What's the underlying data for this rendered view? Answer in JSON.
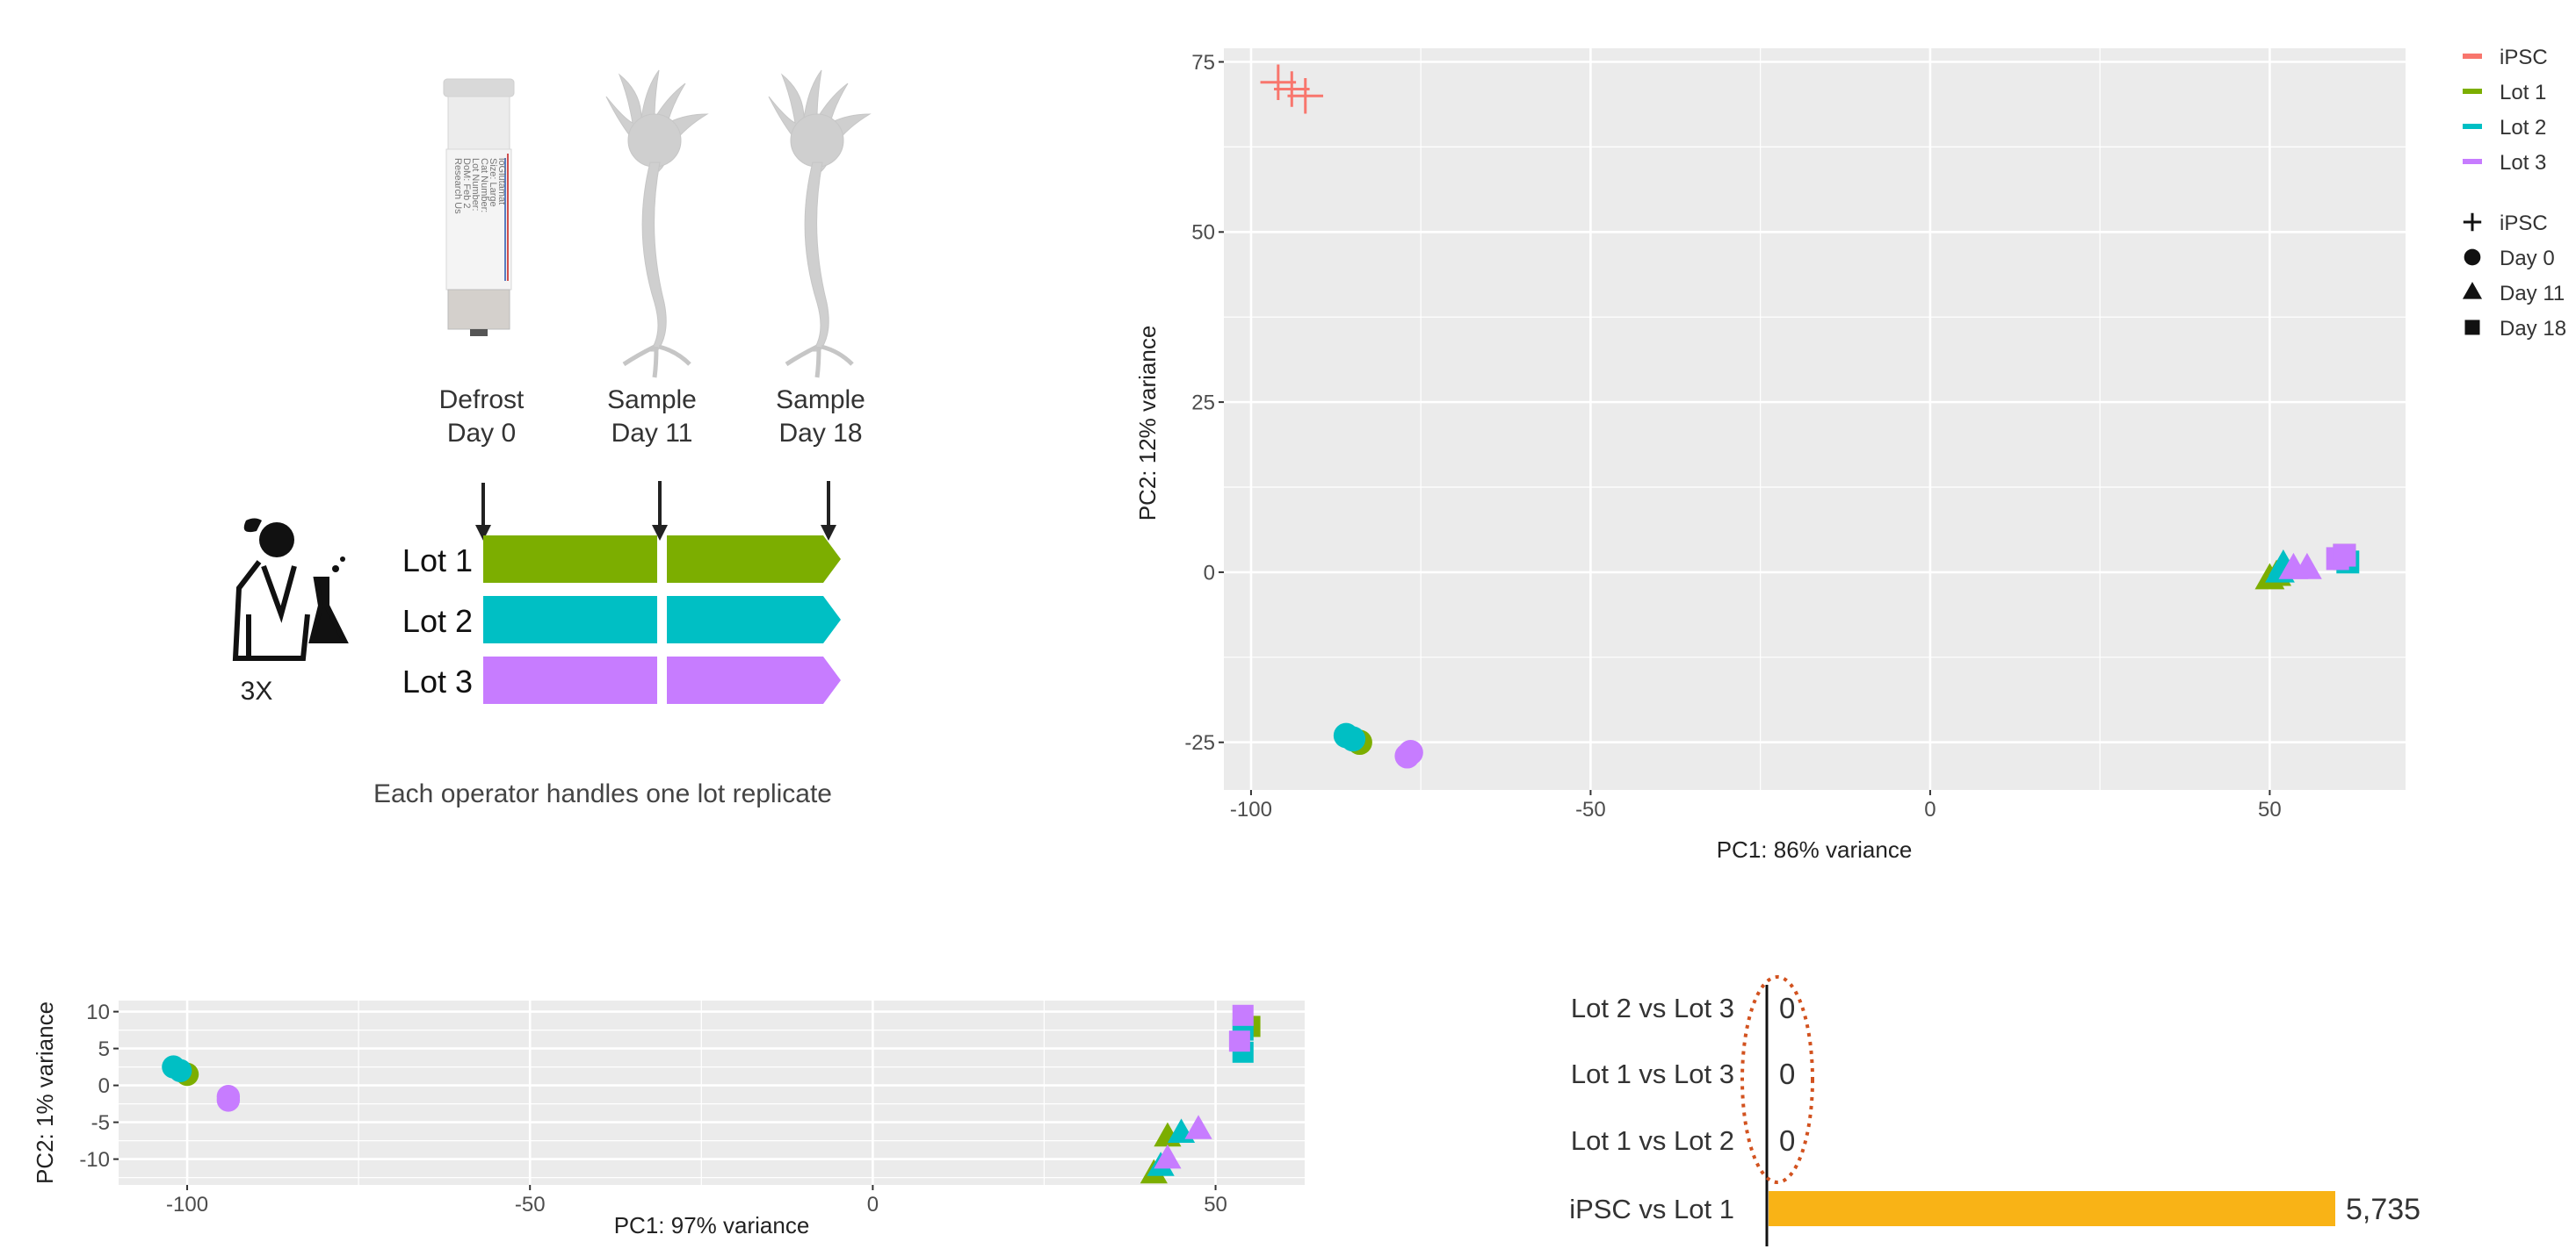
{
  "schematic": {
    "timepoints": [
      {
        "line1": "Defrost",
        "line2": "Day 0"
      },
      {
        "line1": "Sample",
        "line2": "Day 11"
      },
      {
        "line1": "Sample",
        "line2": "Day 18"
      }
    ],
    "lots": [
      {
        "label": "Lot 1",
        "color": "#7CAE00"
      },
      {
        "label": "Lot 2",
        "color": "#00BFC4"
      },
      {
        "label": "Lot 3",
        "color": "#C77CFF"
      }
    ],
    "operator_count": "3X",
    "caption": "Each operator handles one lot replicate",
    "vial_text": [
      "ioGlutamat",
      "Size: Large",
      "Cat Number:",
      "Lot Number:",
      "DoM: Feb 2",
      "Research Us"
    ]
  },
  "legend": {
    "colors": [
      {
        "label": "iPSC",
        "color": "#F8766D"
      },
      {
        "label": "Lot 1",
        "color": "#7CAE00"
      },
      {
        "label": "Lot 2",
        "color": "#00BFC4"
      },
      {
        "label": "Lot 3",
        "color": "#C77CFF"
      }
    ],
    "shapes": [
      {
        "label": "iPSC",
        "shape": "plus"
      },
      {
        "label": "Day 0",
        "shape": "circle"
      },
      {
        "label": "Day 11",
        "shape": "triangle"
      },
      {
        "label": "Day 18",
        "shape": "square"
      }
    ]
  },
  "chart_data": [
    {
      "type": "scatter",
      "xlabel": "PC1: 86% variance",
      "ylabel": "PC2: 12% variance",
      "xlim": [
        -104,
        70
      ],
      "ylim": [
        -32,
        77
      ],
      "xticks": [
        -100,
        -50,
        0,
        50
      ],
      "yticks": [
        -25,
        0,
        25,
        50,
        75
      ],
      "grid": true,
      "points": [
        {
          "x": -96,
          "y": 72,
          "group": "iPSC",
          "shape": "plus"
        },
        {
          "x": -94,
          "y": 71,
          "group": "iPSC",
          "shape": "plus"
        },
        {
          "x": -92,
          "y": 70,
          "group": "iPSC",
          "shape": "plus"
        },
        {
          "x": -84,
          "y": -25,
          "group": "Lot 1",
          "shape": "circle"
        },
        {
          "x": -86,
          "y": -24,
          "group": "Lot 2",
          "shape": "circle"
        },
        {
          "x": -85,
          "y": -24.5,
          "group": "Lot 2",
          "shape": "circle"
        },
        {
          "x": -77,
          "y": -27,
          "group": "Lot 3",
          "shape": "circle"
        },
        {
          "x": -76.5,
          "y": -26.5,
          "group": "Lot 3",
          "shape": "circle"
        },
        {
          "x": 50,
          "y": -1,
          "group": "Lot 1",
          "shape": "triangle"
        },
        {
          "x": 51,
          "y": -0.5,
          "group": "Lot 1",
          "shape": "triangle"
        },
        {
          "x": 52,
          "y": 1,
          "group": "Lot 2",
          "shape": "triangle"
        },
        {
          "x": 51.5,
          "y": 0,
          "group": "Lot 2",
          "shape": "triangle"
        },
        {
          "x": 53.5,
          "y": 0.5,
          "group": "Lot 3",
          "shape": "triangle"
        },
        {
          "x": 55.5,
          "y": 0.5,
          "group": "Lot 3",
          "shape": "triangle"
        },
        {
          "x": 61,
          "y": 2.5,
          "group": "Lot 1",
          "shape": "square"
        },
        {
          "x": 61,
          "y": 2,
          "group": "Lot 2",
          "shape": "square"
        },
        {
          "x": 61.5,
          "y": 1.5,
          "group": "Lot 2",
          "shape": "square"
        },
        {
          "x": 60,
          "y": 2,
          "group": "Lot 3",
          "shape": "square"
        },
        {
          "x": 61,
          "y": 2.5,
          "group": "Lot 3",
          "shape": "square"
        }
      ]
    },
    {
      "type": "scatter",
      "xlabel": "PC1: 97% variance",
      "ylabel": "PC2: 1% variance",
      "xlim": [
        -110,
        63
      ],
      "ylim": [
        -13.5,
        11.5
      ],
      "xticks": [
        -100,
        -50,
        0,
        50
      ],
      "yticks": [
        -10,
        -5,
        0,
        5,
        10
      ],
      "grid": true,
      "points": [
        {
          "x": -100,
          "y": 1.5,
          "group": "Lot 1",
          "shape": "circle"
        },
        {
          "x": -102,
          "y": 2.5,
          "group": "Lot 2",
          "shape": "circle"
        },
        {
          "x": -101,
          "y": 2,
          "group": "Lot 2",
          "shape": "circle"
        },
        {
          "x": -94,
          "y": -1.5,
          "group": "Lot 3",
          "shape": "circle"
        },
        {
          "x": -94,
          "y": -2,
          "group": "Lot 3",
          "shape": "circle"
        },
        {
          "x": 41,
          "y": -12,
          "group": "Lot 1",
          "shape": "triangle"
        },
        {
          "x": 43,
          "y": -7,
          "group": "Lot 1",
          "shape": "triangle"
        },
        {
          "x": 42,
          "y": -11,
          "group": "Lot 2",
          "shape": "triangle"
        },
        {
          "x": 45,
          "y": -6.5,
          "group": "Lot 2",
          "shape": "triangle"
        },
        {
          "x": 43,
          "y": -10,
          "group": "Lot 3",
          "shape": "triangle"
        },
        {
          "x": 47.5,
          "y": -6,
          "group": "Lot 3",
          "shape": "triangle"
        },
        {
          "x": 55,
          "y": 8,
          "group": "Lot 1",
          "shape": "square"
        },
        {
          "x": 54,
          "y": 7.5,
          "group": "Lot 2",
          "shape": "square"
        },
        {
          "x": 54,
          "y": 4.5,
          "group": "Lot 2",
          "shape": "square"
        },
        {
          "x": 54,
          "y": 9.5,
          "group": "Lot 3",
          "shape": "square"
        },
        {
          "x": 53.5,
          "y": 6,
          "group": "Lot 3",
          "shape": "square"
        }
      ]
    },
    {
      "type": "bar",
      "orientation": "horizontal",
      "categories": [
        "Lot 2 vs Lot 3",
        "Lot 1 vs Lot 3",
        "Lot 1 vs Lot 2",
        "iPSC vs Lot 1"
      ],
      "values": [
        0,
        0,
        0,
        5735
      ],
      "value_labels": [
        "0",
        "0",
        "0",
        "5,735"
      ],
      "xlim": [
        0,
        5735
      ],
      "bar_color": "#F9B316",
      "annotation": "zero-value labels circled with dashed red ellipse"
    }
  ]
}
